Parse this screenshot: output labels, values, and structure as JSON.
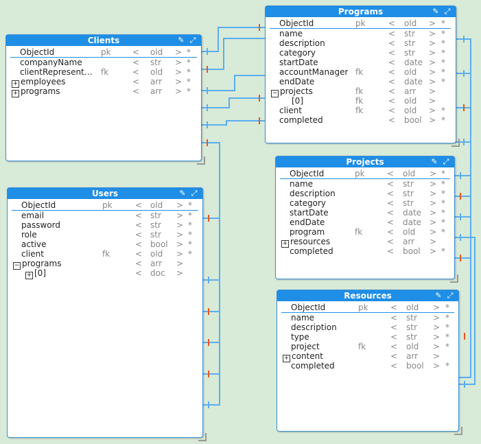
{
  "entities": {
    "clients": {
      "title": "Clients",
      "fields": [
        {
          "name": "ObjectId",
          "key": "pk",
          "type": "old",
          "req": "*",
          "expand": ""
        },
        {
          "name": "companyName",
          "key": "",
          "type": "str",
          "req": "*",
          "expand": ""
        },
        {
          "name": "clientRepresentat...",
          "key": "fk",
          "type": "old",
          "req": "*",
          "expand": ""
        },
        {
          "name": "employees",
          "key": "",
          "type": "arr",
          "req": "*",
          "expand": "plus"
        },
        {
          "name": "programs",
          "key": "",
          "type": "arr",
          "req": "*",
          "expand": "plus"
        }
      ]
    },
    "users": {
      "title": "Users",
      "fields": [
        {
          "name": "ObjectId",
          "key": "pk",
          "type": "old",
          "req": "*",
          "expand": ""
        },
        {
          "name": "email",
          "key": "",
          "type": "str",
          "req": "*",
          "expand": ""
        },
        {
          "name": "password",
          "key": "",
          "type": "str",
          "req": "*",
          "expand": ""
        },
        {
          "name": "role",
          "key": "",
          "type": "str",
          "req": "*",
          "expand": ""
        },
        {
          "name": "active",
          "key": "",
          "type": "bool",
          "req": "*",
          "expand": ""
        },
        {
          "name": "client",
          "key": "fk",
          "type": "old",
          "req": "*",
          "expand": ""
        },
        {
          "name": "programs",
          "key": "",
          "type": "arr",
          "req": "",
          "expand": "minus"
        },
        {
          "name": "[0]",
          "key": "",
          "type": "doc",
          "req": "",
          "expand": "plus",
          "indent": true
        }
      ]
    },
    "programs": {
      "title": "Programs",
      "fields": [
        {
          "name": "ObjectId",
          "key": "pk",
          "type": "old",
          "req": "*",
          "expand": ""
        },
        {
          "name": "name",
          "key": "",
          "type": "str",
          "req": "*",
          "expand": ""
        },
        {
          "name": "description",
          "key": "",
          "type": "str",
          "req": "*",
          "expand": ""
        },
        {
          "name": "category",
          "key": "",
          "type": "str",
          "req": "*",
          "expand": ""
        },
        {
          "name": "startDate",
          "key": "",
          "type": "date",
          "req": "*",
          "expand": ""
        },
        {
          "name": "accountManager",
          "key": "fk",
          "type": "old",
          "req": "*",
          "expand": ""
        },
        {
          "name": "endDate",
          "key": "",
          "type": "date",
          "req": "*",
          "expand": ""
        },
        {
          "name": "projects",
          "key": "fk",
          "type": "arr",
          "req": "",
          "expand": "minus"
        },
        {
          "name": "[0]",
          "key": "fk",
          "type": "old",
          "req": "",
          "expand": "",
          "indent": true
        },
        {
          "name": "client",
          "key": "fk",
          "type": "old",
          "req": "*",
          "expand": ""
        },
        {
          "name": "completed",
          "key": "",
          "type": "bool",
          "req": "*",
          "expand": ""
        }
      ]
    },
    "projects": {
      "title": "Projects",
      "fields": [
        {
          "name": "ObjectId",
          "key": "pk",
          "type": "old",
          "req": "*",
          "expand": ""
        },
        {
          "name": "name",
          "key": "",
          "type": "str",
          "req": "*",
          "expand": ""
        },
        {
          "name": "description",
          "key": "",
          "type": "str",
          "req": "*",
          "expand": ""
        },
        {
          "name": "category",
          "key": "",
          "type": "str",
          "req": "*",
          "expand": ""
        },
        {
          "name": "startDate",
          "key": "",
          "type": "date",
          "req": "*",
          "expand": ""
        },
        {
          "name": "endDate",
          "key": "",
          "type": "date",
          "req": "*",
          "expand": ""
        },
        {
          "name": "program",
          "key": "fk",
          "type": "old",
          "req": "*",
          "expand": ""
        },
        {
          "name": "resources",
          "key": "",
          "type": "arr",
          "req": "",
          "expand": "plus"
        },
        {
          "name": "completed",
          "key": "",
          "type": "bool",
          "req": "*",
          "expand": ""
        }
      ]
    },
    "resources": {
      "title": "Resources",
      "fields": [
        {
          "name": "ObjectId",
          "key": "pk",
          "type": "old",
          "req": "*",
          "expand": ""
        },
        {
          "name": "name",
          "key": "",
          "type": "str",
          "req": "*",
          "expand": ""
        },
        {
          "name": "description",
          "key": "",
          "type": "str",
          "req": "*",
          "expand": ""
        },
        {
          "name": "type",
          "key": "",
          "type": "str",
          "req": "*",
          "expand": ""
        },
        {
          "name": "project",
          "key": "fk",
          "type": "old",
          "req": "*",
          "expand": ""
        },
        {
          "name": "content",
          "key": "",
          "type": "arr",
          "req": "",
          "expand": "plus"
        },
        {
          "name": "completed",
          "key": "",
          "type": "bool",
          "req": "*",
          "expand": ""
        }
      ]
    }
  },
  "glyphs": {
    "lt": "<",
    "gt": ">",
    "plus": "+",
    "minus": "−",
    "edit": "✎",
    "expand": "⤢"
  },
  "colors": {
    "header": "#1f8ee6",
    "wire": "#5aaef0",
    "marker": "#e8541e",
    "canvas": "#d8ead8"
  }
}
